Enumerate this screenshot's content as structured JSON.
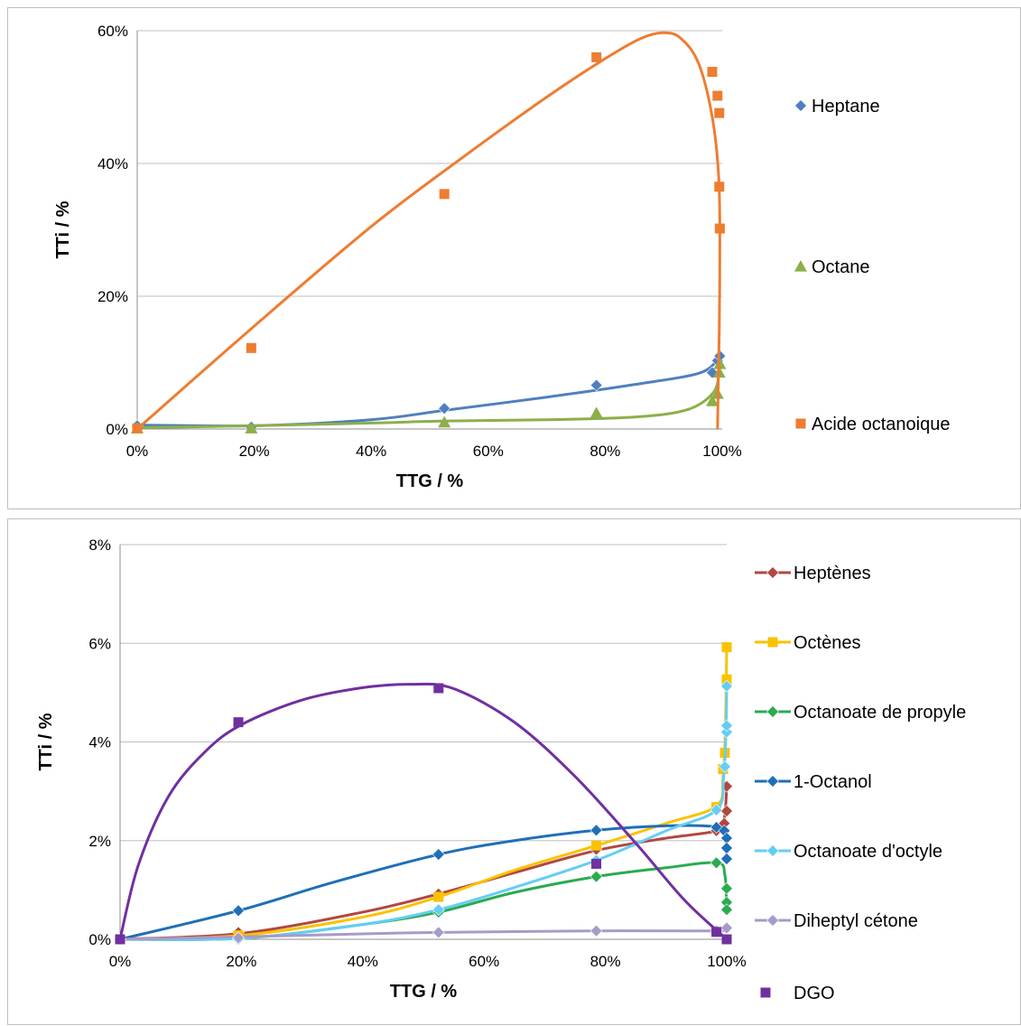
{
  "chart_data": [
    {
      "type": "scatter",
      "xlabel": "TTG / %",
      "ylabel": "TTi / %",
      "xlim": [
        0,
        100
      ],
      "ylim": [
        0,
        60
      ],
      "xticks": [
        "0%",
        "20%",
        "40%",
        "60%",
        "80%",
        "100%"
      ],
      "yticks": [
        "0%",
        "20%",
        "40%",
        "60%"
      ],
      "grid": "horizontal",
      "legend_position": "right",
      "series": [
        {
          "name": "Heptane",
          "color": "#4f7fbf",
          "marker": "diamond",
          "curve": true,
          "points": [
            [
              0,
              0.5
            ],
            [
              19.5,
              0.3
            ],
            [
              52.5,
              3.1
            ],
            [
              78.5,
              6.6
            ],
            [
              98.3,
              8.5
            ],
            [
              99.2,
              10.3
            ],
            [
              99.6,
              11.0
            ]
          ],
          "fit": [
            [
              0,
              0.6
            ],
            [
              20,
              0.5
            ],
            [
              40,
              1.4
            ],
            [
              52.5,
              2.8
            ],
            [
              70,
              4.8
            ],
            [
              85,
              6.7
            ],
            [
              96,
              8.4
            ],
            [
              99.4,
              10.6
            ]
          ]
        },
        {
          "name": "Octane",
          "color": "#8caf4a",
          "marker": "triangle",
          "curve": true,
          "points": [
            [
              0,
              0.1
            ],
            [
              19.5,
              0.1
            ],
            [
              52.5,
              1.0
            ],
            [
              78.5,
              2.4
            ],
            [
              98.3,
              4.2
            ],
            [
              99.2,
              5.3
            ],
            [
              99.5,
              8.5
            ],
            [
              99.6,
              9.8
            ]
          ],
          "fit": [
            [
              0,
              0.2
            ],
            [
              20,
              0.5
            ],
            [
              40,
              0.9
            ],
            [
              52.5,
              1.2
            ],
            [
              70,
              1.4
            ],
            [
              85,
              1.8
            ],
            [
              94,
              2.9
            ],
            [
              98.5,
              5.5
            ],
            [
              99.5,
              8.8
            ]
          ]
        },
        {
          "name": "Acide octanoique",
          "color": "#ed7d31",
          "marker": "square",
          "curve": true,
          "points": [
            [
              0,
              0.1
            ],
            [
              19.5,
              12.2
            ],
            [
              52.5,
              35.4
            ],
            [
              78.5,
              56.0
            ],
            [
              98.3,
              53.8
            ],
            [
              99.2,
              50.2
            ],
            [
              99.5,
              47.6
            ],
            [
              99.5,
              36.5
            ],
            [
              99.6,
              30.2
            ]
          ],
          "fit": [
            [
              0,
              0
            ],
            [
              20,
              15.5
            ],
            [
              40,
              30.5
            ],
            [
              55,
              40.5
            ],
            [
              70,
              50
            ],
            [
              80,
              55.8
            ],
            [
              86,
              58.8
            ],
            [
              90,
              59.7
            ],
            [
              93,
              58.8
            ],
            [
              96,
              55
            ],
            [
              98.3,
              47
            ],
            [
              99.4,
              38
            ],
            [
              99.6,
              28
            ],
            [
              99.5,
              15
            ],
            [
              99.3,
              5
            ],
            [
              99.2,
              0
            ]
          ]
        }
      ]
    },
    {
      "type": "scatter",
      "xlabel": "TTG / %",
      "ylabel": "TTi / %",
      "xlim": [
        0,
        100
      ],
      "ylim": [
        0,
        8
      ],
      "xticks": [
        "0%",
        "20%",
        "40%",
        "60%",
        "80%",
        "100%"
      ],
      "yticks": [
        "0%",
        "2%",
        "4%",
        "6%",
        "8%"
      ],
      "grid": "horizontal",
      "legend_position": "right",
      "series": [
        {
          "name": "Heptènes",
          "color": "#b24740",
          "marker": "diamond",
          "curve": true,
          "points": [
            [
              0,
              0
            ],
            [
              19.5,
              0.14
            ],
            [
              52.5,
              0.92
            ],
            [
              78.5,
              1.82
            ],
            [
              98.3,
              2.2
            ],
            [
              99.6,
              2.35
            ],
            [
              100,
              2.6
            ],
            [
              100,
              3.1
            ]
          ],
          "fit": [
            [
              0,
              0
            ],
            [
              20,
              0.12
            ],
            [
              40,
              0.55
            ],
            [
              52.5,
              0.92
            ],
            [
              65,
              1.35
            ],
            [
              78.5,
              1.8
            ],
            [
              90,
              2.05
            ],
            [
              98.3,
              2.2
            ],
            [
              99.6,
              2.45
            ],
            [
              100,
              3.1
            ]
          ]
        },
        {
          "name": "Octènes",
          "color": "#fac200",
          "marker": "square",
          "curve": true,
          "points": [
            [
              0,
              0
            ],
            [
              19.5,
              0.08
            ],
            [
              52.5,
              0.86
            ],
            [
              78.5,
              1.9
            ],
            [
              98.3,
              2.68
            ],
            [
              99.4,
              3.45
            ],
            [
              99.7,
              3.78
            ],
            [
              100,
              5.27
            ],
            [
              100,
              5.92
            ]
          ],
          "fit": [
            [
              0,
              0
            ],
            [
              20,
              0.08
            ],
            [
              40,
              0.45
            ],
            [
              52.5,
              0.86
            ],
            [
              65,
              1.4
            ],
            [
              78.5,
              1.9
            ],
            [
              90,
              2.35
            ],
            [
              98.3,
              2.7
            ],
            [
              99.4,
              3.3
            ],
            [
              99.8,
              4.4
            ],
            [
              100,
              5.92
            ]
          ]
        },
        {
          "name": "Octanoate de propyle",
          "color": "#2aab4f",
          "marker": "diamond",
          "curve": true,
          "points": [
            [
              0,
              0
            ],
            [
              19.5,
              0.02
            ],
            [
              52.5,
              0.55
            ],
            [
              78.5,
              1.27
            ],
            [
              98.3,
              1.55
            ],
            [
              100,
              1.03
            ],
            [
              100,
              0.75
            ],
            [
              100,
              0.6
            ]
          ],
          "fit": [
            [
              0,
              0
            ],
            [
              20,
              0.02
            ],
            [
              40,
              0.3
            ],
            [
              52.5,
              0.55
            ],
            [
              65,
              0.95
            ],
            [
              78.5,
              1.27
            ],
            [
              90,
              1.45
            ],
            [
              98.3,
              1.55
            ],
            [
              99.7,
              1.3
            ],
            [
              100,
              0.6
            ]
          ]
        },
        {
          "name": "1-Octanol",
          "color": "#1f6fb7",
          "marker": "diamond",
          "curve": true,
          "points": [
            [
              0,
              0
            ],
            [
              19.5,
              0.58
            ],
            [
              52.5,
              1.72
            ],
            [
              78.5,
              2.21
            ],
            [
              98.3,
              2.27
            ],
            [
              99.6,
              2.2
            ],
            [
              100,
              2.05
            ],
            [
              100,
              1.85
            ],
            [
              100,
              1.63
            ]
          ],
          "fit": [
            [
              0,
              0
            ],
            [
              19.5,
              0.58
            ],
            [
              35,
              1.15
            ],
            [
              52.5,
              1.72
            ],
            [
              65,
              2.0
            ],
            [
              78.5,
              2.21
            ],
            [
              90,
              2.3
            ],
            [
              98.3,
              2.28
            ],
            [
              99.7,
              2.15
            ],
            [
              100,
              1.63
            ]
          ]
        },
        {
          "name": "Octanoate d'octyle",
          "color": "#65cdf4",
          "marker": "diamond",
          "curve": true,
          "points": [
            [
              0,
              0
            ],
            [
              19.5,
              0.0
            ],
            [
              52.5,
              0.6
            ],
            [
              78.5,
              1.6
            ],
            [
              98.3,
              2.62
            ],
            [
              99.7,
              3.5
            ],
            [
              100,
              4.2
            ],
            [
              100,
              4.33
            ],
            [
              100,
              5.13
            ]
          ],
          "fit": [
            [
              0,
              0
            ],
            [
              20,
              0.02
            ],
            [
              40,
              0.3
            ],
            [
              52.5,
              0.6
            ],
            [
              65,
              1.05
            ],
            [
              78.5,
              1.6
            ],
            [
              90,
              2.2
            ],
            [
              98.3,
              2.62
            ],
            [
              99.5,
              3.3
            ],
            [
              99.9,
              4.3
            ],
            [
              100,
              5.13
            ]
          ]
        },
        {
          "name": "Diheptyl cétone",
          "color": "#a69bc9",
          "marker": "diamond",
          "curve": true,
          "points": [
            [
              0,
              0
            ],
            [
              19.5,
              0.03
            ],
            [
              52.5,
              0.14
            ],
            [
              78.5,
              0.17
            ],
            [
              98.3,
              0.17
            ],
            [
              100,
              0.23
            ]
          ],
          "fit": [
            [
              0,
              0
            ],
            [
              20,
              0.05
            ],
            [
              40,
              0.11
            ],
            [
              52.5,
              0.14
            ],
            [
              78.5,
              0.17
            ],
            [
              98.3,
              0.17
            ],
            [
              100,
              0.2
            ]
          ]
        },
        {
          "name": "DGO",
          "color": "#7030a0",
          "marker": "square",
          "curve": true,
          "legend_no_line": true,
          "points": [
            [
              0,
              0
            ],
            [
              19.5,
              4.4
            ],
            [
              52.5,
              5.09
            ],
            [
              78.5,
              1.53
            ],
            [
              98.3,
              0.15
            ],
            [
              100,
              0.0
            ]
          ],
          "fit": [
            [
              0,
              0
            ],
            [
              3,
              1.5
            ],
            [
              8,
              2.9
            ],
            [
              14,
              3.8
            ],
            [
              20,
              4.35
            ],
            [
              30,
              4.85
            ],
            [
              40,
              5.1
            ],
            [
              48,
              5.17
            ],
            [
              55,
              5.08
            ],
            [
              65,
              4.4
            ],
            [
              75,
              3.3
            ],
            [
              85,
              1.95
            ],
            [
              93,
              0.8
            ],
            [
              100,
              0.0
            ]
          ]
        }
      ]
    }
  ]
}
